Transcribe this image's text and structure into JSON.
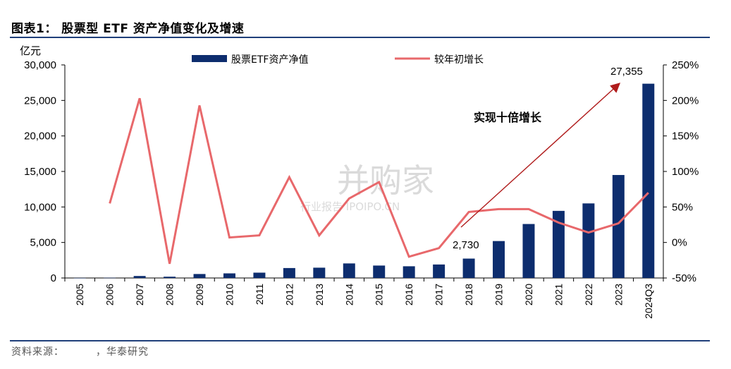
{
  "header": {
    "title": "图表1：  股票型 ETF 资产净值变化及增速"
  },
  "footer": {
    "source_label": "资料来源：",
    "source_text": "，华泰研究"
  },
  "watermark": {
    "main": "并购家",
    "sub": "行业报告 IPOIPO.CN"
  },
  "chart_data": {
    "type": "bar+line",
    "categories": [
      "2005",
      "2006",
      "2007",
      "2008",
      "2009",
      "2010",
      "2011",
      "2012",
      "2013",
      "2014",
      "2015",
      "2016",
      "2017",
      "2018",
      "2019",
      "2020",
      "2021",
      "2022",
      "2023",
      "2024Q3"
    ],
    "series": [
      {
        "name": "股票ETF资产净值",
        "type": "bar",
        "axis": "left",
        "color": "#0d2d6e",
        "values": [
          10,
          30,
          280,
          180,
          560,
          650,
          750,
          1400,
          1450,
          2050,
          1750,
          1650,
          1900,
          2730,
          5200,
          7600,
          9450,
          10500,
          14500,
          27355
        ]
      },
      {
        "name": "较年初增长",
        "type": "line",
        "axis": "right",
        "color": "#e8686b",
        "values": [
          null,
          55,
          203,
          -30,
          193,
          7,
          10,
          92,
          10,
          62,
          85,
          -20,
          -8,
          43,
          47,
          47,
          28,
          14,
          27,
          70
        ]
      }
    ],
    "left_axis": {
      "unit": "亿元",
      "ylim": [
        0,
        30000
      ],
      "ticks": [
        "0",
        "5,000",
        "10,000",
        "15,000",
        "20,000",
        "25,000",
        "30,000"
      ]
    },
    "right_axis": {
      "ylim": [
        -50,
        250
      ],
      "ticks": [
        "-50%",
        "0%",
        "50%",
        "100%",
        "150%",
        "200%",
        "250%"
      ]
    },
    "annotations": {
      "label_2018": "2,730",
      "label_2024": "27,355",
      "arrow_text": "实现十倍增长"
    },
    "grid": false,
    "legend_position": "top"
  }
}
